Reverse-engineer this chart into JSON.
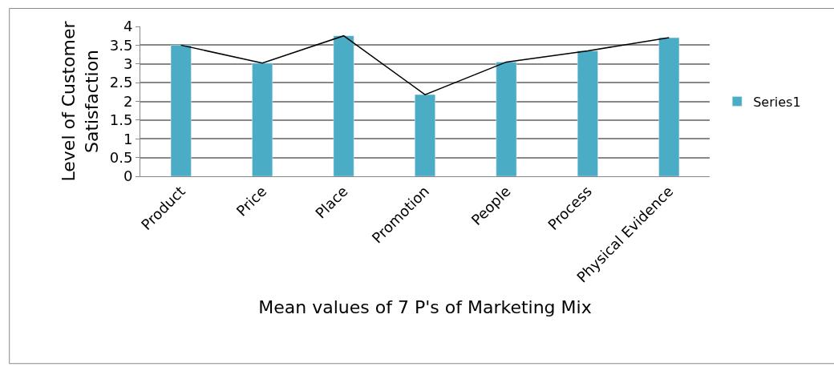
{
  "chart_data": {
    "type": "bar",
    "xlabel": "Mean values of 7 P's of Marketing Mix",
    "ylabel": "Level of Customer Satisfaction",
    "categories": [
      "Product",
      "Price",
      "Place",
      "Promotion",
      "People",
      "Process",
      "Physical Evidence"
    ],
    "series": [
      {
        "name": "Series1",
        "color": "#4bacc6",
        "values": [
          3.5,
          3.02,
          3.75,
          2.18,
          3.05,
          3.35,
          3.7
        ]
      },
      {
        "type": "line",
        "color": "#000000",
        "values": [
          3.5,
          3.02,
          3.75,
          2.18,
          3.05,
          3.35,
          3.7
        ],
        "marker": "none"
      }
    ],
    "ylim": [
      0,
      4
    ],
    "yticks": [
      0,
      0.5,
      1,
      1.5,
      2,
      2.5,
      3,
      3.5,
      4
    ],
    "grid": "y",
    "legend": "right"
  }
}
